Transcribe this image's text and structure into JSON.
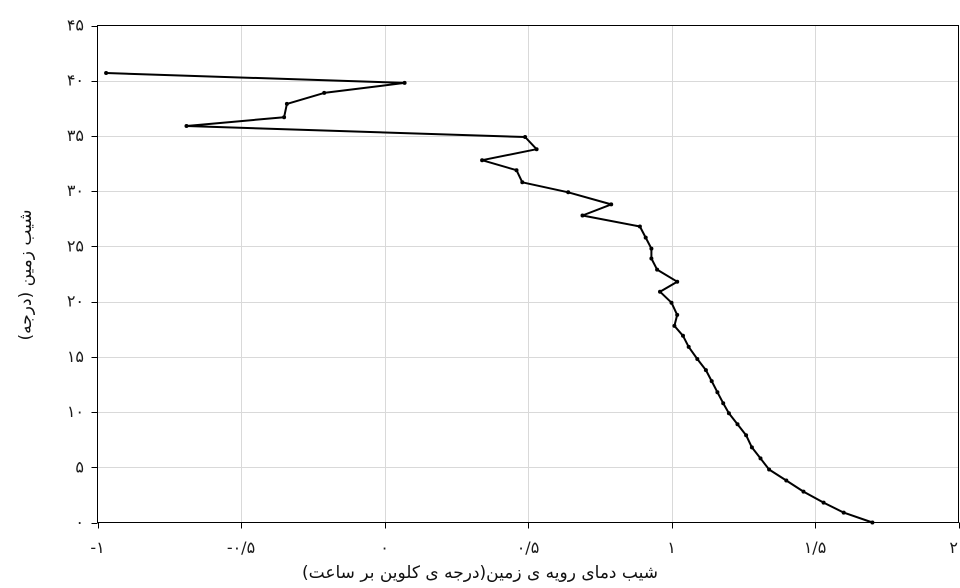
{
  "chart_data": {
    "type": "line",
    "xlabel": "شیب دمای رویه ی زمین(درجه ی کلوین بر ساعت)",
    "ylabel": "شیب زمین (درجه)",
    "xlim": [
      -1,
      2
    ],
    "ylim": [
      0,
      45
    ],
    "xticks": [
      -1,
      -0.5,
      0,
      0.5,
      1,
      1.5,
      2
    ],
    "xtick_labels": [
      "-۱",
      "-۰/۵",
      "۰",
      "۰/۵",
      "۱",
      "۱/۵",
      "۲"
    ],
    "yticks": [
      0,
      5,
      10,
      15,
      20,
      25,
      30,
      35,
      40,
      45
    ],
    "ytick_labels": [
      "۰",
      "۵",
      "۱۰",
      "۱۵",
      "۲۰",
      "۲۵",
      "۳۰",
      "۳۵",
      "۴۰",
      "۴۵"
    ],
    "grid": true,
    "colors": {
      "line": "#000000",
      "grid": "#d9d9d9",
      "axis": "#000000"
    },
    "series": [
      {
        "marker": "point",
        "x": [
          -0.97,
          0.07,
          -0.21,
          -0.34,
          -0.35,
          -0.69,
          0.49,
          0.53,
          0.34,
          0.46,
          0.48,
          0.64,
          0.79,
          0.69,
          0.89,
          0.91,
          0.93,
          0.93,
          0.95,
          1.02,
          0.96,
          1.0,
          1.02,
          1.01,
          1.04,
          1.06,
          1.09,
          1.12,
          1.14,
          1.16,
          1.18,
          1.2,
          1.23,
          1.26,
          1.28,
          1.31,
          1.34,
          1.4,
          1.46,
          1.53,
          1.6,
          1.7
        ],
        "y": [
          40.7,
          39.8,
          38.9,
          37.9,
          36.7,
          35.9,
          34.9,
          33.8,
          32.8,
          31.9,
          30.8,
          29.9,
          28.8,
          27.8,
          26.8,
          25.8,
          24.8,
          23.9,
          22.9,
          21.8,
          20.9,
          19.9,
          18.8,
          17.8,
          16.9,
          15.9,
          14.8,
          13.8,
          12.8,
          11.8,
          10.8,
          9.9,
          8.9,
          7.9,
          6.8,
          5.8,
          4.8,
          3.8,
          2.8,
          1.8,
          0.9,
          0
        ]
      }
    ]
  }
}
